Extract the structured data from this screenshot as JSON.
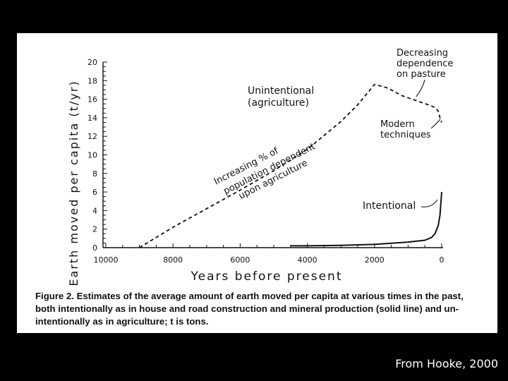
{
  "chart_data": {
    "type": "line",
    "ylabel": "Earth moved per capita (t/yr)",
    "xlabel": "Years before present",
    "xlim": [
      10000,
      0
    ],
    "ylim": [
      0,
      20
    ],
    "xticks": [
      10000,
      8000,
      6000,
      4000,
      2000,
      0
    ],
    "yticks": [
      0,
      2,
      4,
      6,
      8,
      10,
      12,
      14,
      16,
      18,
      20
    ],
    "grid": false,
    "series": [
      {
        "name": "Unintentional (agriculture)",
        "style": "dashed",
        "color": "#111111",
        "points": [
          [
            9000,
            0
          ],
          [
            8000,
            2.2
          ],
          [
            7000,
            4.2
          ],
          [
            6000,
            6.2
          ],
          [
            5000,
            8.3
          ],
          [
            4000,
            10.6
          ],
          [
            3000,
            13.6
          ],
          [
            2500,
            15.4
          ],
          [
            2000,
            17.6
          ],
          [
            1600,
            17.2
          ],
          [
            1200,
            16.4
          ],
          [
            800,
            15.9
          ],
          [
            400,
            15.4
          ],
          [
            200,
            15.1
          ],
          [
            100,
            14.7
          ],
          [
            50,
            14.0
          ],
          [
            0,
            13.5
          ]
        ]
      },
      {
        "name": "Intentional",
        "style": "solid",
        "color": "#111111",
        "points": [
          [
            4500,
            0.2
          ],
          [
            4000,
            0.2
          ],
          [
            3000,
            0.25
          ],
          [
            2000,
            0.35
          ],
          [
            1000,
            0.6
          ],
          [
            500,
            0.8
          ],
          [
            300,
            1.1
          ],
          [
            200,
            1.5
          ],
          [
            100,
            2.4
          ],
          [
            50,
            3.5
          ],
          [
            0,
            6.0
          ]
        ]
      }
    ],
    "annotations": {
      "unintentional": [
        "Unintentional",
        "(agriculture)"
      ],
      "increasing": [
        "Increasing % of",
        "population dependent",
        "upon agriculture"
      ],
      "decreasing": [
        "Decreasing",
        "dependence",
        "on pasture"
      ],
      "modern": [
        "Modern",
        "techniques"
      ],
      "intentional": "Intentional"
    }
  },
  "caption": {
    "lead": "Figure 2. Estimates of the average amount of earth moved per capita at various times in the past,",
    "line2": "both intentionally as in house and road construction and mineral production (solid line) and un-",
    "line3": "intentionally as in agriculture; t is tons."
  },
  "credit": "From Hooke, 2000"
}
